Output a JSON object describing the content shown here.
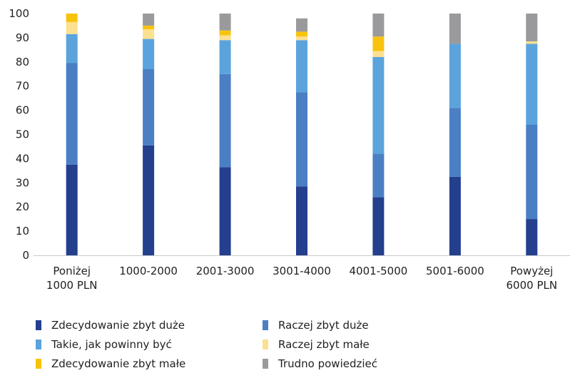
{
  "chart_data": {
    "type": "bar",
    "stacked": true,
    "categories": [
      [
        "Poniżej",
        "1000 PLN"
      ],
      [
        "1000-2000"
      ],
      [
        "2001-3000"
      ],
      [
        "3001-4000"
      ],
      [
        "4001-5000"
      ],
      [
        "5001-6000"
      ],
      [
        "Powyżej",
        "6000 PLN"
      ]
    ],
    "series": [
      {
        "name": "Zdecydowanie zbyt duże",
        "color": "#233f8e",
        "values": [
          37.5,
          45.5,
          36.5,
          28.5,
          24,
          32.5,
          15
        ]
      },
      {
        "name": "Raczej zbyt duże",
        "color": "#4a7fc3",
        "values": [
          42,
          31.5,
          38.5,
          39,
          18,
          28.5,
          39
        ]
      },
      {
        "name": "Takie, jak powinny być",
        "color": "#5ba3dc",
        "values": [
          12,
          12.5,
          14,
          21.5,
          40,
          26.5,
          33.5
        ]
      },
      {
        "name": "Raczej zbyt małe",
        "color": "#fbe090",
        "values": [
          5,
          4,
          2,
          1.5,
          2.5,
          0,
          1
        ]
      },
      {
        "name": "Zdecydowanie zbyt małe",
        "color": "#f9c30d",
        "values": [
          3.5,
          1.5,
          2,
          2,
          6,
          0,
          0
        ]
      },
      {
        "name": "Trudno powiedzieć",
        "color": "#9a9a9c",
        "values": [
          0,
          5,
          7,
          5.5,
          9.5,
          12.5,
          11.5
        ]
      }
    ],
    "yticks": [
      0,
      10,
      20,
      30,
      40,
      50,
      60,
      70,
      80,
      90,
      100
    ],
    "ylim": [
      0,
      100
    ],
    "legend_position": "bottom"
  }
}
